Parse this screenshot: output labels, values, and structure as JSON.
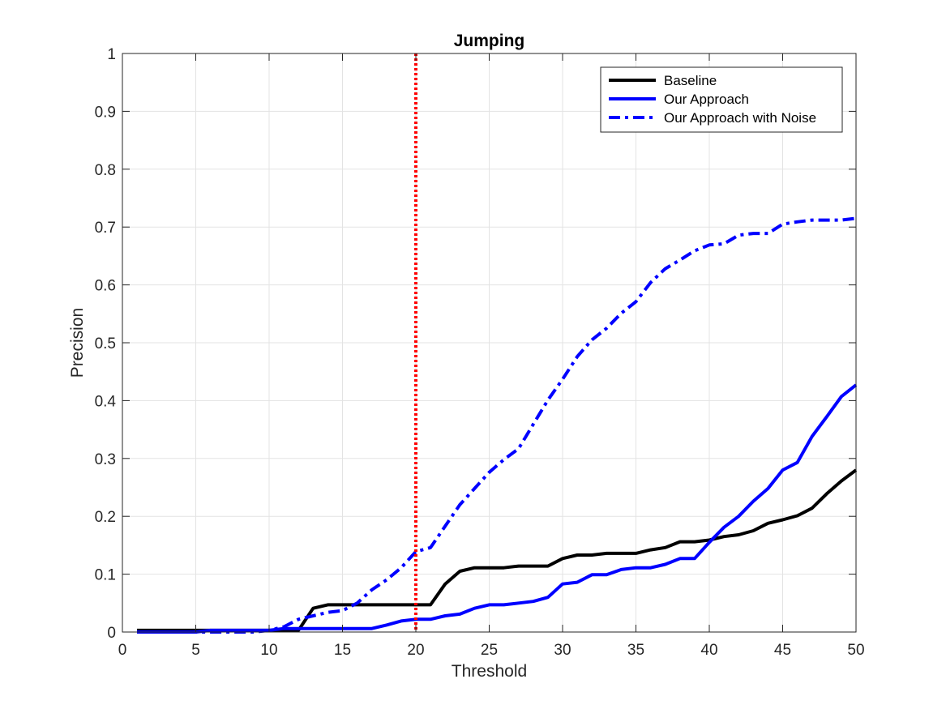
{
  "chart_data": {
    "type": "line",
    "title": "Jumping",
    "xlabel": "Threshold",
    "ylabel": "Precision",
    "xlim": [
      0,
      50
    ],
    "ylim": [
      0,
      1
    ],
    "xticks": [
      "0",
      "5",
      "10",
      "15",
      "20",
      "25",
      "30",
      "35",
      "40",
      "45",
      "50"
    ],
    "yticks": [
      "0",
      "0.1",
      "0.2",
      "0.3",
      "0.4",
      "0.5",
      "0.6",
      "0.7",
      "0.8",
      "0.9",
      "1"
    ],
    "grid": true,
    "legend_position": "top-right",
    "x": [
      1,
      2,
      3,
      4,
      5,
      6,
      7,
      8,
      9,
      10,
      11,
      12,
      13,
      14,
      15,
      16,
      17,
      18,
      19,
      20,
      21,
      22,
      23,
      24,
      25,
      26,
      27,
      28,
      29,
      30,
      31,
      32,
      33,
      34,
      35,
      36,
      37,
      38,
      39,
      40,
      41,
      42,
      43,
      44,
      45,
      46,
      47,
      48,
      49,
      50
    ],
    "series": [
      {
        "name": "Baseline",
        "color": "#000000",
        "style": "solid",
        "values": [
          0.003,
          0.003,
          0.003,
          0.003,
          0.003,
          0.003,
          0.003,
          0.003,
          0.003,
          0.003,
          0.003,
          0.003,
          0.041,
          0.047,
          0.047,
          0.047,
          0.047,
          0.047,
          0.047,
          0.047,
          0.047,
          0.083,
          0.105,
          0.111,
          0.111,
          0.111,
          0.114,
          0.114,
          0.114,
          0.127,
          0.133,
          0.133,
          0.136,
          0.136,
          0.136,
          0.142,
          0.146,
          0.156,
          0.156,
          0.159,
          0.165,
          0.168,
          0.175,
          0.188,
          0.194,
          0.201,
          0.214,
          0.239,
          0.261,
          0.28
        ]
      },
      {
        "name": "Our Approach",
        "color": "#0000ff",
        "style": "solid",
        "values": [
          0.0,
          0.0,
          0.0,
          0.0,
          0.0,
          0.003,
          0.003,
          0.003,
          0.003,
          0.003,
          0.006,
          0.006,
          0.006,
          0.006,
          0.006,
          0.006,
          0.006,
          0.012,
          0.019,
          0.022,
          0.022,
          0.028,
          0.031,
          0.041,
          0.047,
          0.047,
          0.05,
          0.053,
          0.06,
          0.083,
          0.086,
          0.099,
          0.099,
          0.108,
          0.111,
          0.111,
          0.117,
          0.127,
          0.127,
          0.155,
          0.181,
          0.2,
          0.226,
          0.248,
          0.28,
          0.293,
          0.338,
          0.372,
          0.407,
          0.427
        ]
      },
      {
        "name": "Our Approach with Noise",
        "color": "#0000ff",
        "style": "dash-dot",
        "values": [
          0.0,
          0.0,
          0.0,
          0.0,
          0.0,
          0.0,
          0.0,
          0.0,
          0.0,
          0.003,
          0.009,
          0.022,
          0.028,
          0.034,
          0.037,
          0.05,
          0.073,
          0.09,
          0.111,
          0.139,
          0.146,
          0.183,
          0.22,
          0.248,
          0.276,
          0.298,
          0.317,
          0.359,
          0.401,
          0.437,
          0.476,
          0.505,
          0.525,
          0.551,
          0.571,
          0.604,
          0.628,
          0.643,
          0.659,
          0.669,
          0.671,
          0.686,
          0.689,
          0.689,
          0.705,
          0.709,
          0.712,
          0.712,
          0.712,
          0.715
        ]
      }
    ],
    "marker_line": {
      "x": 20,
      "color": "#ff0000",
      "style": "dotted"
    }
  }
}
